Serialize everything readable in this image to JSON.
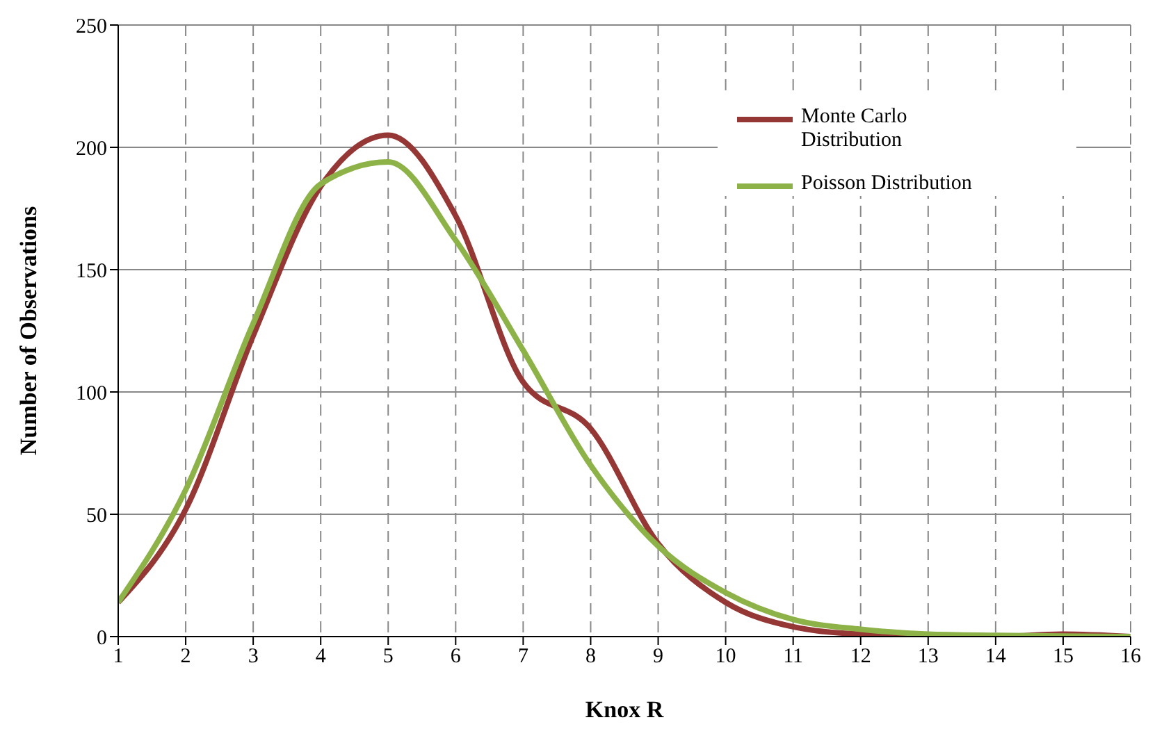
{
  "chart_data": {
    "type": "line",
    "xlabel": "Knox R",
    "ylabel": "Number of Observations",
    "x": [
      1,
      2,
      3,
      4,
      5,
      6,
      7,
      8,
      9,
      10,
      11,
      12,
      13,
      14,
      15,
      16
    ],
    "series": [
      {
        "name": "Monte Carlo Distribution",
        "color": "#953735",
        "values": [
          14,
          52,
          123,
          184,
          205,
          172,
          104,
          85,
          38,
          14,
          4,
          1,
          0.5,
          0,
          1,
          0
        ]
      },
      {
        "name": "Poisson Distribution",
        "color": "#8db247",
        "values": [
          14,
          60,
          128,
          185,
          194,
          162,
          117,
          70,
          37,
          18,
          7,
          3,
          1,
          0.5,
          0.2,
          0
        ]
      }
    ],
    "xlim": [
      1,
      16
    ],
    "xticks": [
      1,
      2,
      3,
      4,
      5,
      6,
      7,
      8,
      9,
      10,
      11,
      12,
      13,
      14,
      15,
      16
    ],
    "ylim": [
      0,
      250
    ],
    "yticks": [
      0,
      50,
      100,
      150,
      200,
      250
    ],
    "grid": true,
    "legend": "top right",
    "marker": "none",
    "line_style": "solid"
  }
}
